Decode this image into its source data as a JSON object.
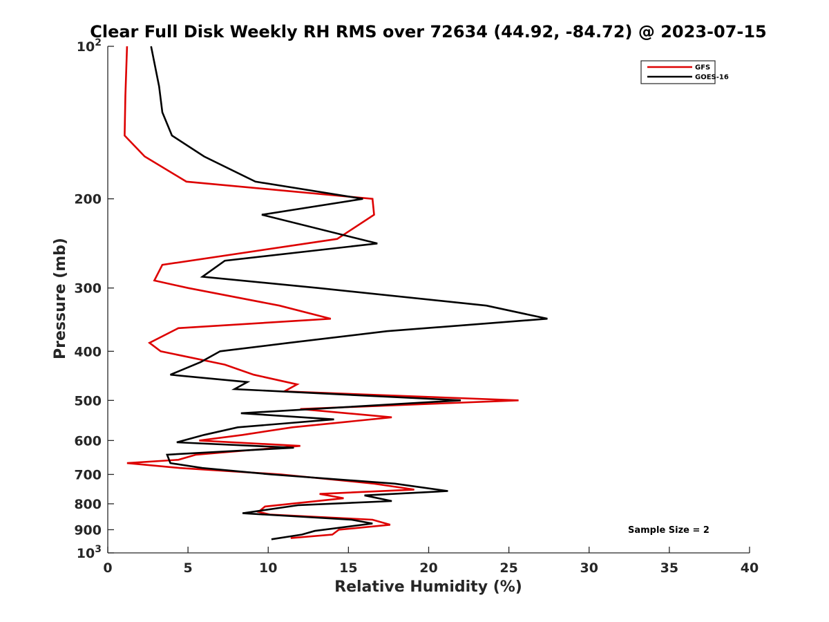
{
  "chart_data": {
    "type": "line",
    "title": "Clear Full Disk Weekly RH RMS over 72634 (44.92, -84.72) @ 2023-07-15",
    "xlabel": "Relative Humidity (%)",
    "ylabel": "Pressure (mb)",
    "xlim": [
      0,
      40
    ],
    "ylim": [
      100,
      1000
    ],
    "yscale": "log",
    "y_reversed": true,
    "xticks": [
      0,
      5,
      10,
      15,
      20,
      25,
      30,
      35,
      40
    ],
    "xtick_labels": [
      "0",
      "5",
      "10",
      "15",
      "20",
      "25",
      "30",
      "35",
      "40"
    ],
    "yticks": [
      {
        "value": 100,
        "base": "10",
        "exp": "2"
      },
      {
        "value": 200,
        "label": "200"
      },
      {
        "value": 300,
        "label": "300"
      },
      {
        "value": 400,
        "label": "400"
      },
      {
        "value": 500,
        "label": "500"
      },
      {
        "value": 600,
        "label": "600"
      },
      {
        "value": 700,
        "label": "700"
      },
      {
        "value": 800,
        "label": "800"
      },
      {
        "value": 900,
        "label": "900"
      },
      {
        "value": 1000,
        "base": "10",
        "exp": "3"
      }
    ],
    "legend": {
      "placement": "top-right"
    },
    "annotation": "Sample Size = 2",
    "series": [
      {
        "name": "GFS",
        "color": "#dd0000",
        "points": [
          [
            1.2,
            100
          ],
          [
            1.1,
            125
          ],
          [
            1.05,
            150
          ],
          [
            2.3,
            165
          ],
          [
            4.9,
            185
          ],
          [
            16.5,
            200
          ],
          [
            16.6,
            215
          ],
          [
            14.3,
            240
          ],
          [
            3.4,
            270
          ],
          [
            2.9,
            290
          ],
          [
            5.0,
            300
          ],
          [
            10.7,
            325
          ],
          [
            13.9,
            345
          ],
          [
            4.4,
            360
          ],
          [
            2.6,
            385
          ],
          [
            3.3,
            400
          ],
          [
            7.3,
            425
          ],
          [
            9.1,
            445
          ],
          [
            11.8,
            465
          ],
          [
            11.0,
            480
          ],
          [
            25.6,
            500
          ],
          [
            12.0,
            520
          ],
          [
            17.7,
            540
          ],
          [
            11.5,
            565
          ],
          [
            8.4,
            585
          ],
          [
            5.7,
            600
          ],
          [
            12.0,
            615
          ],
          [
            5.5,
            640
          ],
          [
            4.4,
            655
          ],
          [
            1.2,
            665
          ],
          [
            4.5,
            680
          ],
          [
            10.8,
            700
          ],
          [
            16.6,
            730
          ],
          [
            19.1,
            750
          ],
          [
            13.2,
            765
          ],
          [
            14.7,
            780
          ],
          [
            9.8,
            810
          ],
          [
            9.4,
            830
          ],
          [
            10.1,
            840
          ],
          [
            16.5,
            860
          ],
          [
            17.6,
            880
          ],
          [
            14.4,
            900
          ],
          [
            14.0,
            920
          ],
          [
            11.4,
            935
          ]
        ]
      },
      {
        "name": "GOES-16",
        "color": "#000000",
        "points": [
          [
            2.7,
            100
          ],
          [
            3.2,
            120
          ],
          [
            3.4,
            135
          ],
          [
            4.0,
            150
          ],
          [
            6.0,
            165
          ],
          [
            9.2,
            185
          ],
          [
            15.9,
            200
          ],
          [
            9.6,
            215
          ],
          [
            16.8,
            245
          ],
          [
            7.3,
            265
          ],
          [
            5.9,
            285
          ],
          [
            13.1,
            300
          ],
          [
            23.6,
            325
          ],
          [
            27.4,
            345
          ],
          [
            17.4,
            365
          ],
          [
            11.3,
            385
          ],
          [
            7.0,
            400
          ],
          [
            5.8,
            420
          ],
          [
            3.9,
            445
          ],
          [
            8.7,
            460
          ],
          [
            7.9,
            475
          ],
          [
            22.0,
            500
          ],
          [
            8.3,
            530
          ],
          [
            14.1,
            545
          ],
          [
            8.1,
            565
          ],
          [
            6.0,
            585
          ],
          [
            4.3,
            605
          ],
          [
            11.6,
            620
          ],
          [
            3.7,
            640
          ],
          [
            3.9,
            665
          ],
          [
            5.9,
            680
          ],
          [
            10.2,
            700
          ],
          [
            17.9,
            730
          ],
          [
            21.2,
            755
          ],
          [
            16.0,
            770
          ],
          [
            17.7,
            790
          ],
          [
            11.9,
            805
          ],
          [
            8.4,
            835
          ],
          [
            15.2,
            860
          ],
          [
            16.5,
            875
          ],
          [
            12.9,
            905
          ],
          [
            12.1,
            920
          ],
          [
            10.2,
            940
          ]
        ]
      }
    ]
  }
}
